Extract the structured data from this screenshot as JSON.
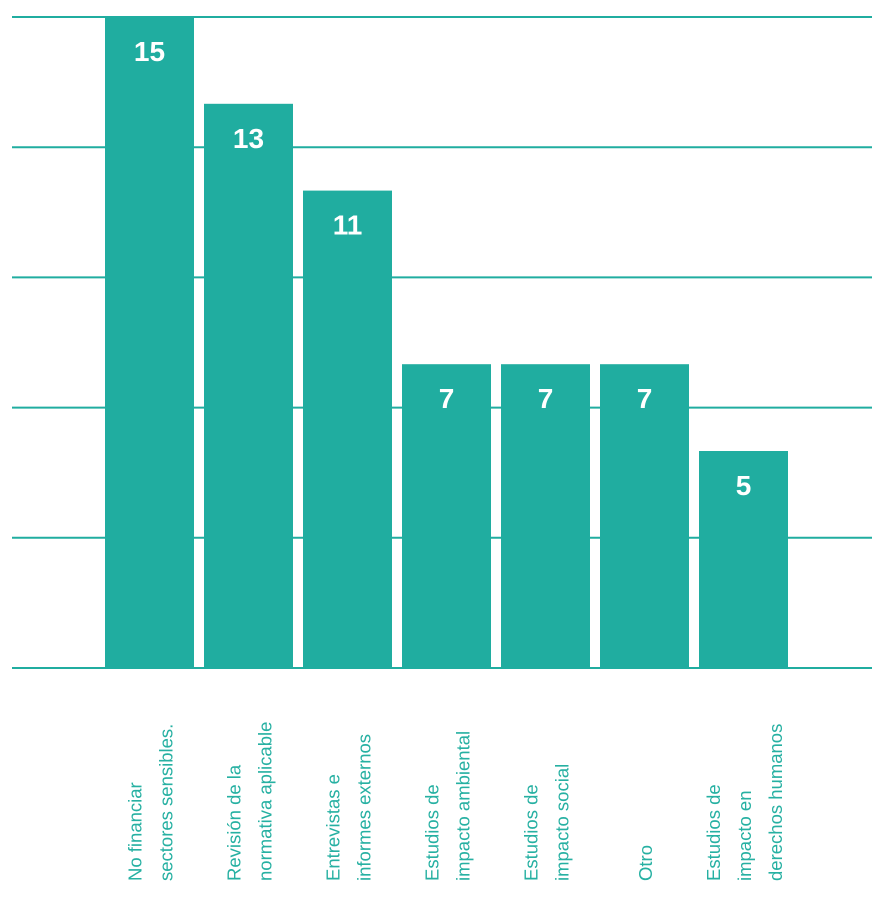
{
  "chart_data": {
    "type": "bar",
    "categories": [
      [
        "No financiar",
        "sectores sensibles."
      ],
      [
        "Revisión de la",
        "normativa aplicable"
      ],
      [
        "Entrevistas e",
        "informes externos"
      ],
      [
        "Estudios de",
        "impacto ambiental"
      ],
      [
        "Estudios de",
        "impacto social"
      ],
      [
        "Otro"
      ],
      [
        "Estudios de",
        "impacto en",
        "derechos humanos"
      ]
    ],
    "values": [
      15,
      13,
      11,
      7,
      7,
      7,
      5
    ],
    "data_labels": [
      "15",
      "13",
      "11",
      "7",
      "7",
      "7",
      "5"
    ],
    "ylim": [
      0,
      15
    ],
    "gridlines": [
      0,
      3,
      6,
      9,
      12,
      15
    ],
    "grid": true,
    "title": "",
    "xlabel": "",
    "ylabel": "",
    "colors": {
      "bar": "#20ada0",
      "grid": "#20ada0",
      "label": "#26b0a2",
      "value_text": "#ffffff"
    }
  }
}
